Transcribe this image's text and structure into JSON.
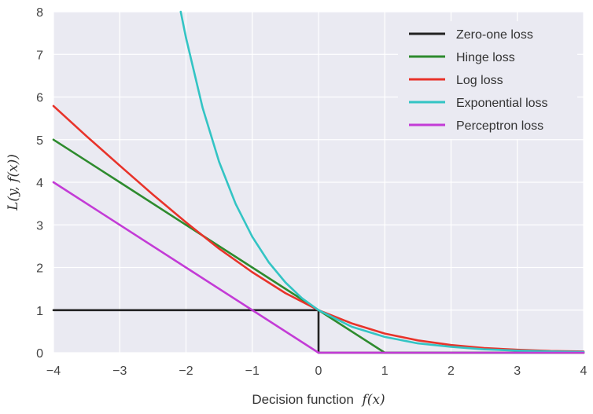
{
  "chart_data": {
    "type": "line",
    "title": "",
    "xlabel": "Decision function",
    "xlabel_math": "f(x)",
    "ylabel": "L(y, f(x))",
    "xlim": [
      -4,
      4
    ],
    "ylim": [
      0,
      8
    ],
    "xticks": [
      -4,
      -3,
      -2,
      -1,
      0,
      1,
      2,
      3,
      4
    ],
    "yticks": [
      0,
      1,
      2,
      3,
      4,
      5,
      6,
      7,
      8
    ],
    "grid": true,
    "legend_position": "top-right",
    "series": [
      {
        "name": "Zero-one loss",
        "color": "#222222",
        "x": [
          -4,
          0,
          0,
          4
        ],
        "y": [
          1,
          1,
          0,
          0
        ]
      },
      {
        "name": "Hinge loss",
        "color": "#2e8b2e",
        "x": [
          -4,
          -3,
          -2,
          -1,
          0,
          1,
          4
        ],
        "y": [
          5,
          4,
          3,
          2,
          1,
          0,
          0
        ]
      },
      {
        "name": "Log loss",
        "color": "#e8332a",
        "x": [
          -4,
          -3.5,
          -3,
          -2.5,
          -2,
          -1.5,
          -1,
          -0.5,
          0,
          0.5,
          1,
          1.5,
          2,
          2.5,
          3,
          3.5,
          4
        ],
        "y": [
          5.79,
          5.08,
          4.39,
          3.71,
          3.06,
          2.44,
          1.89,
          1.4,
          1.0,
          0.69,
          0.45,
          0.29,
          0.18,
          0.11,
          0.07,
          0.04,
          0.03
        ]
      },
      {
        "name": "Exponential loss",
        "color": "#33c4c4",
        "x": [
          -2.079,
          -2,
          -1.75,
          -1.5,
          -1.25,
          -1,
          -0.75,
          -0.5,
          -0.25,
          0,
          0.5,
          1,
          1.5,
          2,
          2.5,
          3,
          3.5,
          4
        ],
        "y": [
          8.0,
          7.39,
          5.75,
          4.48,
          3.49,
          2.72,
          2.12,
          1.65,
          1.28,
          1.0,
          0.61,
          0.37,
          0.22,
          0.14,
          0.08,
          0.05,
          0.03,
          0.02
        ]
      },
      {
        "name": "Perceptron loss",
        "color": "#c33bd6",
        "x": [
          -4,
          0,
          4
        ],
        "y": [
          4,
          0,
          0
        ]
      }
    ]
  }
}
